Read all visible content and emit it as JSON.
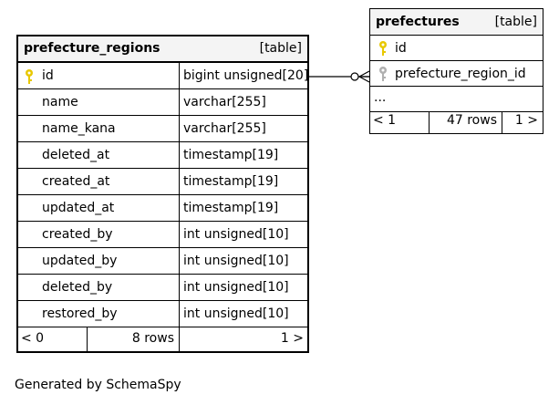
{
  "prefecture_regions": {
    "name": "prefecture_regions",
    "kind": "[table]",
    "columns": [
      {
        "name": "id",
        "type": "bigint unsigned[20]",
        "key": "primary"
      },
      {
        "name": "name",
        "type": "varchar[255]",
        "key": ""
      },
      {
        "name": "name_kana",
        "type": "varchar[255]",
        "key": ""
      },
      {
        "name": "deleted_at",
        "type": "timestamp[19]",
        "key": ""
      },
      {
        "name": "created_at",
        "type": "timestamp[19]",
        "key": ""
      },
      {
        "name": "updated_at",
        "type": "timestamp[19]",
        "key": ""
      },
      {
        "name": "created_by",
        "type": "int unsigned[10]",
        "key": ""
      },
      {
        "name": "updated_by",
        "type": "int unsigned[10]",
        "key": ""
      },
      {
        "name": "deleted_by",
        "type": "int unsigned[10]",
        "key": ""
      },
      {
        "name": "restored_by",
        "type": "int unsigned[10]",
        "key": ""
      }
    ],
    "footer": {
      "parents": "< 0",
      "rows": "8 rows",
      "children": "1 >"
    }
  },
  "prefectures": {
    "name": "prefectures",
    "kind": "[table]",
    "columns": [
      {
        "name": "id",
        "key": "primary"
      },
      {
        "name": "prefecture_region_id",
        "key": "foreign"
      }
    ],
    "ellipsis": "...",
    "footer": {
      "parents": "< 1",
      "rows": "47 rows",
      "children": "1 >"
    }
  },
  "colors": {
    "header_bg": "#f4f4f4",
    "primary_key": "#e8c800",
    "foreign_key": "#b0b0b0",
    "line": "#000000"
  },
  "generator": "Generated by SchemaSpy"
}
